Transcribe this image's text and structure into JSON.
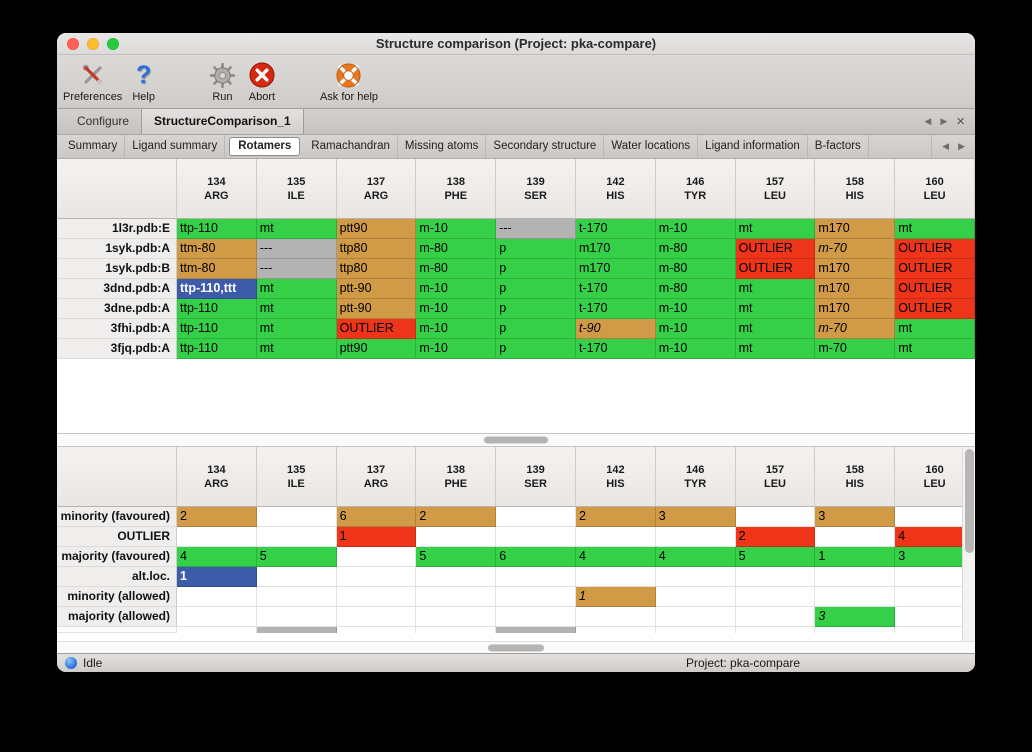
{
  "window": {
    "title": "Structure comparison (Project: pka-compare)"
  },
  "toolbar": {
    "items": [
      {
        "id": "preferences",
        "label": "Preferences"
      },
      {
        "id": "help",
        "label": "Help"
      },
      {
        "id": "run",
        "label": "Run"
      },
      {
        "id": "abort",
        "label": "Abort"
      },
      {
        "id": "ask_for_help",
        "label": "Ask for help"
      }
    ]
  },
  "tabbar": {
    "tabs": [
      {
        "label": "Configure",
        "active": false
      },
      {
        "label": "StructureComparison_1",
        "active": true
      }
    ],
    "nav": {
      "prev": "◀",
      "next": "▶",
      "close": "×"
    }
  },
  "subtabbar": {
    "tabs": [
      "Summary",
      "Ligand summary",
      "Rotamers",
      "Ramachandran",
      "Missing atoms",
      "Secondary structure",
      "Water locations",
      "Ligand information",
      "B-factors"
    ],
    "active": "Rotamers",
    "nav": {
      "prev": "◀",
      "next": "▶"
    }
  },
  "columns": [
    {
      "num": "134",
      "res": "ARG"
    },
    {
      "num": "135",
      "res": "ILE"
    },
    {
      "num": "137",
      "res": "ARG"
    },
    {
      "num": "138",
      "res": "PHE"
    },
    {
      "num": "139",
      "res": "SER"
    },
    {
      "num": "142",
      "res": "HIS"
    },
    {
      "num": "146",
      "res": "TYR"
    },
    {
      "num": "157",
      "res": "LEU"
    },
    {
      "num": "158",
      "res": "HIS"
    },
    {
      "num": "160",
      "res": "LEU"
    }
  ],
  "legend_colors": {
    "favoured": "#35d048",
    "minority": "#d09a46",
    "outlier": "#ee3419",
    "missing": "#b3b3b3",
    "selected": "#3d5ba9"
  },
  "top_table": {
    "rows": [
      {
        "label": "1l3r.pdb:E",
        "cells": [
          {
            "t": "ttp-110",
            "c": "ok"
          },
          {
            "t": "mt",
            "c": "ok"
          },
          {
            "t": "ptt90",
            "c": "minor"
          },
          {
            "t": "m-10",
            "c": "ok"
          },
          {
            "t": "---",
            "c": "missing"
          },
          {
            "t": "t-170",
            "c": "ok"
          },
          {
            "t": "m-10",
            "c": "ok"
          },
          {
            "t": "mt",
            "c": "ok"
          },
          {
            "t": "m170",
            "c": "minor"
          },
          {
            "t": "mt",
            "c": "ok"
          }
        ]
      },
      {
        "label": "1syk.pdb:A",
        "cells": [
          {
            "t": "ttm-80",
            "c": "minor"
          },
          {
            "t": "---",
            "c": "missing"
          },
          {
            "t": "ttp80",
            "c": "minor"
          },
          {
            "t": "m-80",
            "c": "ok"
          },
          {
            "t": "p",
            "c": "ok"
          },
          {
            "t": "m170",
            "c": "ok"
          },
          {
            "t": "m-80",
            "c": "ok"
          },
          {
            "t": "OUTLIER",
            "c": "outlier"
          },
          {
            "t": "m-70",
            "c": "minor",
            "i": true
          },
          {
            "t": "OUTLIER",
            "c": "outlier"
          }
        ]
      },
      {
        "label": "1syk.pdb:B",
        "cells": [
          {
            "t": "ttm-80",
            "c": "minor"
          },
          {
            "t": "---",
            "c": "missing"
          },
          {
            "t": "ttp80",
            "c": "minor"
          },
          {
            "t": "m-80",
            "c": "ok"
          },
          {
            "t": "p",
            "c": "ok"
          },
          {
            "t": "m170",
            "c": "ok"
          },
          {
            "t": "m-80",
            "c": "ok"
          },
          {
            "t": "OUTLIER",
            "c": "outlier"
          },
          {
            "t": "m170",
            "c": "minor"
          },
          {
            "t": "OUTLIER",
            "c": "outlier"
          }
        ]
      },
      {
        "label": "3dnd.pdb:A",
        "cells": [
          {
            "t": "ttp-110,ttt",
            "c": "sel"
          },
          {
            "t": "mt",
            "c": "ok"
          },
          {
            "t": "ptt-90",
            "c": "minor"
          },
          {
            "t": "m-10",
            "c": "ok"
          },
          {
            "t": "p",
            "c": "ok"
          },
          {
            "t": "t-170",
            "c": "ok"
          },
          {
            "t": "m-80",
            "c": "ok"
          },
          {
            "t": "mt",
            "c": "ok"
          },
          {
            "t": "m170",
            "c": "minor"
          },
          {
            "t": "OUTLIER",
            "c": "outlier"
          }
        ]
      },
      {
        "label": "3dne.pdb:A",
        "cells": [
          {
            "t": "ttp-110",
            "c": "ok"
          },
          {
            "t": "mt",
            "c": "ok"
          },
          {
            "t": "ptt-90",
            "c": "minor"
          },
          {
            "t": "m-10",
            "c": "ok"
          },
          {
            "t": "p",
            "c": "ok"
          },
          {
            "t": "t-170",
            "c": "ok"
          },
          {
            "t": "m-10",
            "c": "ok"
          },
          {
            "t": "mt",
            "c": "ok"
          },
          {
            "t": "m170",
            "c": "minor"
          },
          {
            "t": "OUTLIER",
            "c": "outlier"
          }
        ]
      },
      {
        "label": "3fhi.pdb:A",
        "cells": [
          {
            "t": "ttp-110",
            "c": "ok"
          },
          {
            "t": "mt",
            "c": "ok"
          },
          {
            "t": "OUTLIER",
            "c": "outlier"
          },
          {
            "t": "m-10",
            "c": "ok"
          },
          {
            "t": "p",
            "c": "ok"
          },
          {
            "t": "t-90",
            "c": "minor",
            "i": true
          },
          {
            "t": "m-10",
            "c": "ok"
          },
          {
            "t": "mt",
            "c": "ok"
          },
          {
            "t": "m-70",
            "c": "minor",
            "i": true
          },
          {
            "t": "mt",
            "c": "ok"
          }
        ]
      },
      {
        "label": "3fjq.pdb:A",
        "cells": [
          {
            "t": "ttp-110",
            "c": "ok"
          },
          {
            "t": "mt",
            "c": "ok"
          },
          {
            "t": "ptt90",
            "c": "ok"
          },
          {
            "t": "m-10",
            "c": "ok"
          },
          {
            "t": "p",
            "c": "ok"
          },
          {
            "t": "t-170",
            "c": "ok"
          },
          {
            "t": "m-10",
            "c": "ok"
          },
          {
            "t": "mt",
            "c": "ok"
          },
          {
            "t": "m-70",
            "c": "ok"
          },
          {
            "t": "mt",
            "c": "ok"
          }
        ]
      }
    ]
  },
  "bottom_table": {
    "rows": [
      {
        "label": "minority (favoured)",
        "cells": [
          {
            "t": "2",
            "c": "minor"
          },
          {},
          {
            "t": "6",
            "c": "minor"
          },
          {
            "t": "2",
            "c": "minor"
          },
          {},
          {
            "t": "2",
            "c": "minor"
          },
          {
            "t": "3",
            "c": "minor"
          },
          {},
          {
            "t": "3",
            "c": "minor"
          },
          {}
        ]
      },
      {
        "label": "OUTLIER",
        "cells": [
          {},
          {},
          {
            "t": "1",
            "c": "outlier"
          },
          {},
          {},
          {},
          {},
          {
            "t": "2",
            "c": "outlier"
          },
          {},
          {
            "t": "4",
            "c": "outlier"
          }
        ]
      },
      {
        "label": "majority (favoured)",
        "cells": [
          {
            "t": "4",
            "c": "ok"
          },
          {
            "t": "5",
            "c": "ok"
          },
          {},
          {
            "t": "5",
            "c": "ok"
          },
          {
            "t": "6",
            "c": "ok"
          },
          {
            "t": "4",
            "c": "ok"
          },
          {
            "t": "4",
            "c": "ok"
          },
          {
            "t": "5",
            "c": "ok"
          },
          {
            "t": "1",
            "c": "ok"
          },
          {
            "t": "3",
            "c": "ok"
          }
        ]
      },
      {
        "label": "alt.loc.",
        "cells": [
          {
            "t": "1",
            "c": "sel"
          },
          {},
          {},
          {},
          {},
          {},
          {},
          {},
          {},
          {}
        ]
      },
      {
        "label": "minority (allowed)",
        "cells": [
          {},
          {},
          {},
          {},
          {},
          {
            "t": "1",
            "c": "minor",
            "i": true
          },
          {},
          {},
          {},
          {}
        ]
      },
      {
        "label": "majority (allowed)",
        "cells": [
          {},
          {},
          {},
          {},
          {},
          {},
          {},
          {},
          {
            "t": "3",
            "c": "ok",
            "i": true
          },
          {}
        ]
      }
    ],
    "partial_row": {
      "cells": [
        {},
        {
          "c": "missing"
        },
        {},
        {},
        {
          "c": "missing"
        },
        {},
        {},
        {},
        {},
        {}
      ]
    }
  },
  "statusbar": {
    "state": "Idle",
    "project": "Project: pka-compare"
  }
}
